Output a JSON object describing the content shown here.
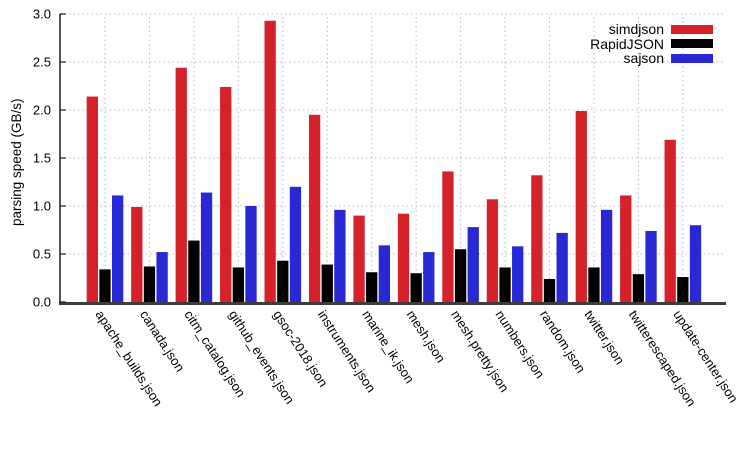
{
  "chart_data": {
    "type": "bar",
    "title": "",
    "xlabel": "",
    "ylabel": "parsing speed (GB/s)",
    "ylim": [
      0.0,
      3.0
    ],
    "ytick_step": 0.5,
    "ytick_labels": [
      "0.0",
      "0.5",
      "1.0",
      "1.5",
      "2.0",
      "2.5",
      "3.0"
    ],
    "grid": true,
    "grid_style": "dotted",
    "legend_position": "top-right",
    "xtick_rotation_deg": 57,
    "categories": [
      "apache_builds.json",
      "canada.json",
      "citm_catalog.json",
      "github_events.json",
      "gsoc-2018.json",
      "instruments.json",
      "marine_ik.json",
      "mesh.json",
      "mesh.pretty.json",
      "numbers.json",
      "random.json",
      "twitter.json",
      "twitterescaped.json",
      "update-center.json"
    ],
    "series": [
      {
        "name": "simdjson",
        "color": "#d4212a",
        "values": [
          2.14,
          0.99,
          2.44,
          2.24,
          2.93,
          1.95,
          0.9,
          0.92,
          1.36,
          1.07,
          1.32,
          1.99,
          1.11,
          1.69
        ]
      },
      {
        "name": "RapidJSON",
        "color": "#000000",
        "values": [
          0.34,
          0.37,
          0.64,
          0.36,
          0.43,
          0.39,
          0.31,
          0.3,
          0.55,
          0.36,
          0.24,
          0.36,
          0.29,
          0.26
        ]
      },
      {
        "name": "sajson",
        "color": "#2828d4",
        "values": [
          1.11,
          0.52,
          1.14,
          1.0,
          1.2,
          0.96,
          0.59,
          0.52,
          0.78,
          0.58,
          0.72,
          0.96,
          0.74,
          0.8
        ]
      }
    ],
    "colors": {
      "grid": "#b9b9b9",
      "axis": "#1a1a1a",
      "baseline": "#3d3d3d",
      "text": "#000000"
    }
  }
}
